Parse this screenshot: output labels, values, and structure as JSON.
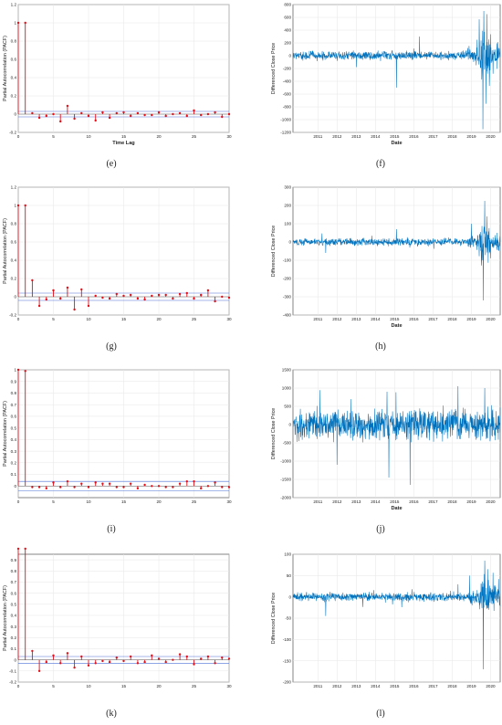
{
  "chart_data": [
    {
      "id": "e",
      "type": "stem",
      "caption": "(e)",
      "ylabel": "Partial Autocorrelation (PACF)",
      "xlabel": "Time Lag",
      "xlim": [
        0,
        30
      ],
      "ylim": [
        -0.2,
        1.2
      ],
      "xticks": [
        "0",
        "5",
        "10",
        "15",
        "20",
        "25",
        "30"
      ],
      "yticks": [
        "-0.2",
        "0",
        "0.2",
        "0.4",
        "0.6",
        "0.8",
        "1",
        "1.2"
      ],
      "conf_bound": 0.03,
      "x": [
        0,
        1,
        2,
        3,
        4,
        5,
        6,
        7,
        8,
        9,
        10,
        11,
        12,
        13,
        14,
        15,
        16,
        17,
        18,
        19,
        20,
        21,
        22,
        23,
        24,
        25,
        26,
        27,
        28,
        29,
        30
      ],
      "values": [
        1,
        1,
        0.01,
        -0.04,
        -0.02,
        0.0,
        -0.08,
        0.09,
        -0.05,
        0.01,
        -0.02,
        -0.07,
        0.02,
        -0.04,
        0.01,
        0.02,
        -0.02,
        0.01,
        -0.01,
        -0.01,
        0.02,
        -0.02,
        0.0,
        0.01,
        -0.02,
        0.04,
        -0.01,
        0.0,
        0.02,
        -0.03,
        0.0
      ]
    },
    {
      "id": "f",
      "type": "line",
      "caption": "(f)",
      "ylabel": "Differenced Close Price",
      "xlabel": "Date",
      "ylim": [
        -1200,
        800
      ],
      "yticks": [
        "-1200",
        "-1000",
        "-800",
        "-600",
        "-400",
        "-200",
        "0",
        "200",
        "400",
        "600",
        "800"
      ],
      "xticks": [
        "2011",
        "2012",
        "2013",
        "2014",
        "2015",
        "2016",
        "2017",
        "2018",
        "2019",
        "2020"
      ],
      "x_start_year": 2010.2,
      "x_end_year": 2021.0,
      "series_color": "#0072BD",
      "base_amplitude": 40,
      "segments": [
        {
          "from": 2010.2,
          "to": 2019.3,
          "amplitude": 40
        },
        {
          "from": 2019.3,
          "to": 2019.9,
          "amplitude": 70
        },
        {
          "from": 2019.9,
          "to": 2020.5,
          "amplitude": 200
        },
        {
          "from": 2020.5,
          "to": 2021.0,
          "amplitude": 110
        }
      ],
      "extremes": [
        {
          "year": 2015.6,
          "value": -500
        },
        {
          "year": 2016.8,
          "value": 300
        },
        {
          "year": 2020.1,
          "value": -1150
        },
        {
          "year": 2020.15,
          "value": 700
        },
        {
          "year": 2020.3,
          "value": 650
        },
        {
          "year": 2019.8,
          "value": 250
        }
      ]
    },
    {
      "id": "g",
      "type": "stem",
      "caption": "(g)",
      "ylabel": "Partial Autocorrelation (PACF)",
      "xlabel": "",
      "xlim": [
        0,
        30
      ],
      "ylim": [
        -0.2,
        1.2
      ],
      "xticks": [
        "0",
        "5",
        "10",
        "15",
        "20",
        "25",
        "30"
      ],
      "yticks": [
        "-0.2",
        "0",
        "0.2",
        "0.4",
        "0.6",
        "0.8",
        "1",
        "1.2"
      ],
      "conf_bound": 0.04,
      "x": [
        0,
        1,
        2,
        3,
        4,
        5,
        6,
        7,
        8,
        9,
        10,
        11,
        12,
        13,
        14,
        15,
        16,
        17,
        18,
        19,
        20,
        21,
        22,
        23,
        24,
        25,
        26,
        27,
        28,
        29,
        30
      ],
      "values": [
        1,
        1,
        0.18,
        -0.1,
        -0.03,
        0.07,
        -0.02,
        0.1,
        -0.14,
        0.08,
        -0.1,
        0.01,
        -0.01,
        -0.02,
        0.03,
        0.01,
        0.02,
        -0.02,
        -0.03,
        0.01,
        0.02,
        0.02,
        -0.02,
        0.03,
        0.04,
        -0.02,
        0.02,
        0.07,
        -0.05,
        0.0,
        -0.01
      ]
    },
    {
      "id": "h",
      "type": "line",
      "caption": "(h)",
      "ylabel": "Differenced Close Price",
      "xlabel": "Date",
      "ylim": [
        -400,
        300
      ],
      "yticks": [
        "-400",
        "-300",
        "-200",
        "-100",
        "0",
        "100",
        "200",
        "300"
      ],
      "xticks": [
        "2011",
        "2012",
        "2013",
        "2014",
        "2015",
        "2016",
        "2017",
        "2018",
        "2019",
        "2020"
      ],
      "x_start_year": 2010.2,
      "x_end_year": 2021.0,
      "series_color": "#0072BD",
      "segments": [
        {
          "from": 2010.2,
          "to": 2019.3,
          "amplitude": 12
        },
        {
          "from": 2019.3,
          "to": 2019.9,
          "amplitude": 22
        },
        {
          "from": 2019.9,
          "to": 2020.5,
          "amplitude": 60
        },
        {
          "from": 2020.5,
          "to": 2021.0,
          "amplitude": 35
        }
      ],
      "extremes": [
        {
          "year": 2020.12,
          "value": -320
        },
        {
          "year": 2020.2,
          "value": 225
        },
        {
          "year": 2020.3,
          "value": 140
        },
        {
          "year": 2019.5,
          "value": 100
        },
        {
          "year": 2011.9,
          "value": -60
        },
        {
          "year": 2015.6,
          "value": 70
        }
      ]
    },
    {
      "id": "i",
      "type": "stem",
      "caption": "(i)",
      "ylabel": "Partial Autocorrelation (PACF)",
      "xlabel": "",
      "xlim": [
        0,
        30
      ],
      "ylim": [
        -0.1,
        1.0
      ],
      "xticks": [
        "0",
        "5",
        "10",
        "15",
        "20",
        "25",
        "30"
      ],
      "yticks": [
        "0",
        "0.1",
        "0.2",
        "0.3",
        "0.4",
        "0.5",
        "0.6",
        "0.7",
        "0.8",
        "0.9",
        "1"
      ],
      "conf_bound": 0.04,
      "x": [
        0,
        1,
        2,
        3,
        4,
        5,
        6,
        7,
        8,
        9,
        10,
        11,
        12,
        13,
        14,
        15,
        16,
        17,
        18,
        19,
        20,
        21,
        22,
        23,
        24,
        25,
        26,
        27,
        28,
        29,
        30
      ],
      "values": [
        1,
        0.99,
        -0.01,
        -0.01,
        -0.02,
        0.03,
        -0.01,
        0.04,
        -0.01,
        0.02,
        -0.01,
        0.03,
        0.02,
        0.02,
        -0.01,
        -0.01,
        0.02,
        -0.02,
        0.01,
        0.0,
        0.0,
        -0.01,
        -0.01,
        0.02,
        0.04,
        0.04,
        -0.02,
        0.0,
        0.03,
        -0.01,
        -0.01
      ]
    },
    {
      "id": "j",
      "type": "line",
      "caption": "(j)",
      "ylabel": "Differenced Close Price",
      "xlabel": "Date",
      "ylim": [
        -2000,
        1500
      ],
      "yticks": [
        "-2000",
        "-1500",
        "-1000",
        "-500",
        "0",
        "500",
        "1000",
        "1500"
      ],
      "xticks": [
        "2011",
        "2012",
        "2013",
        "2014",
        "2015",
        "2016",
        "2017",
        "2018",
        "2019",
        "2020"
      ],
      "x_start_year": 2010.2,
      "x_end_year": 2021.0,
      "series_color": "#0072BD",
      "segments": [
        {
          "from": 2010.2,
          "to": 2021.0,
          "amplitude": 260
        }
      ],
      "extremes": [
        {
          "year": 2015.2,
          "value": -1450
        },
        {
          "year": 2016.3,
          "value": -1650
        },
        {
          "year": 2015.1,
          "value": 900
        },
        {
          "year": 2018.8,
          "value": 1050
        },
        {
          "year": 2012.5,
          "value": -1100
        },
        {
          "year": 2020.2,
          "value": 1000
        }
      ]
    },
    {
      "id": "k",
      "type": "stem",
      "caption": "(k)",
      "ylabel": "Partial Autocorrelation (PACF)",
      "xlabel": "",
      "xlim": [
        0,
        30
      ],
      "ylim": [
        -0.2,
        0.95
      ],
      "xticks": [
        "0",
        "5",
        "10",
        "15",
        "20",
        "25",
        "30"
      ],
      "yticks": [
        "-0.2",
        "-0.1",
        "0",
        "0.1",
        "0.2",
        "0.3",
        "0.4",
        "0.5",
        "0.6",
        "0.7",
        "0.8",
        "0.9"
      ],
      "conf_bound": 0.03,
      "x": [
        0,
        1,
        2,
        3,
        4,
        5,
        6,
        7,
        8,
        9,
        10,
        11,
        12,
        13,
        14,
        15,
        16,
        17,
        18,
        19,
        20,
        21,
        22,
        23,
        24,
        25,
        26,
        27,
        28,
        29,
        30
      ],
      "values": [
        1,
        1,
        0.08,
        -0.1,
        -0.02,
        0.04,
        -0.03,
        0.06,
        -0.07,
        0.03,
        -0.05,
        -0.03,
        -0.01,
        -0.02,
        0.02,
        -0.01,
        0.03,
        -0.03,
        -0.02,
        0.04,
        0.01,
        -0.02,
        0.0,
        0.05,
        0.03,
        -0.04,
        0.01,
        0.03,
        -0.03,
        0.02,
        0.01
      ]
    },
    {
      "id": "l",
      "type": "line",
      "caption": "(l)",
      "ylabel": "Differenced Close Price",
      "xlabel": "",
      "ylim": [
        -200,
        100
      ],
      "yticks": [
        "-200",
        "-150",
        "-100",
        "-50",
        "0",
        "50",
        "100"
      ],
      "xticks": [
        "2011",
        "2012",
        "2013",
        "2014",
        "2015",
        "2016",
        "2017",
        "2018",
        "2019",
        "2020"
      ],
      "x_start_year": 2010.2,
      "x_end_year": 2021.0,
      "series_color": "#0072BD",
      "segments": [
        {
          "from": 2010.2,
          "to": 2019.3,
          "amplitude": 6
        },
        {
          "from": 2019.3,
          "to": 2019.9,
          "amplitude": 11
        },
        {
          "from": 2019.9,
          "to": 2020.5,
          "amplitude": 30
        },
        {
          "from": 2020.5,
          "to": 2021.0,
          "amplitude": 18
        }
      ],
      "extremes": [
        {
          "year": 2020.12,
          "value": -170
        },
        {
          "year": 2020.2,
          "value": 85
        },
        {
          "year": 2020.35,
          "value": 65
        },
        {
          "year": 2011.9,
          "value": -45
        },
        {
          "year": 2019.4,
          "value": 50
        }
      ]
    }
  ],
  "style": {
    "stem_color": "#e3101a",
    "conf_color": "#4a6fd6",
    "grid_color": "#e6e6e6",
    "axis_color": "#333333"
  }
}
